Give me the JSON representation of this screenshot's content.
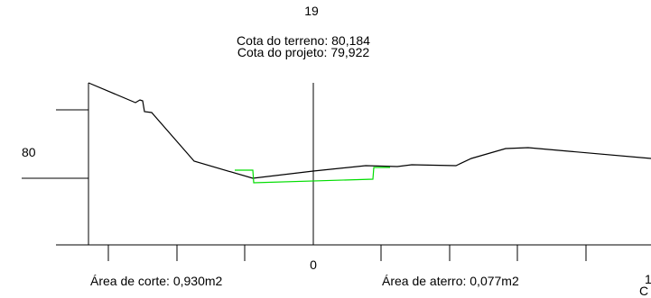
{
  "station": "19",
  "cota_terreno": "Cota do terreno: 80,184",
  "cota_projeto": "Cota do projeto: 79,922",
  "elevation_label": "80",
  "axis_center_label": "0",
  "area_corte": "Área de corte: 0,930m2",
  "area_aterro": "Área de aterro: 0,077m2",
  "edge_text_right": "1",
  "edge_text_bottom_right": "C",
  "colors": {
    "terrain": "#000000",
    "project": "#00dd00",
    "background": "#ffffff"
  }
}
